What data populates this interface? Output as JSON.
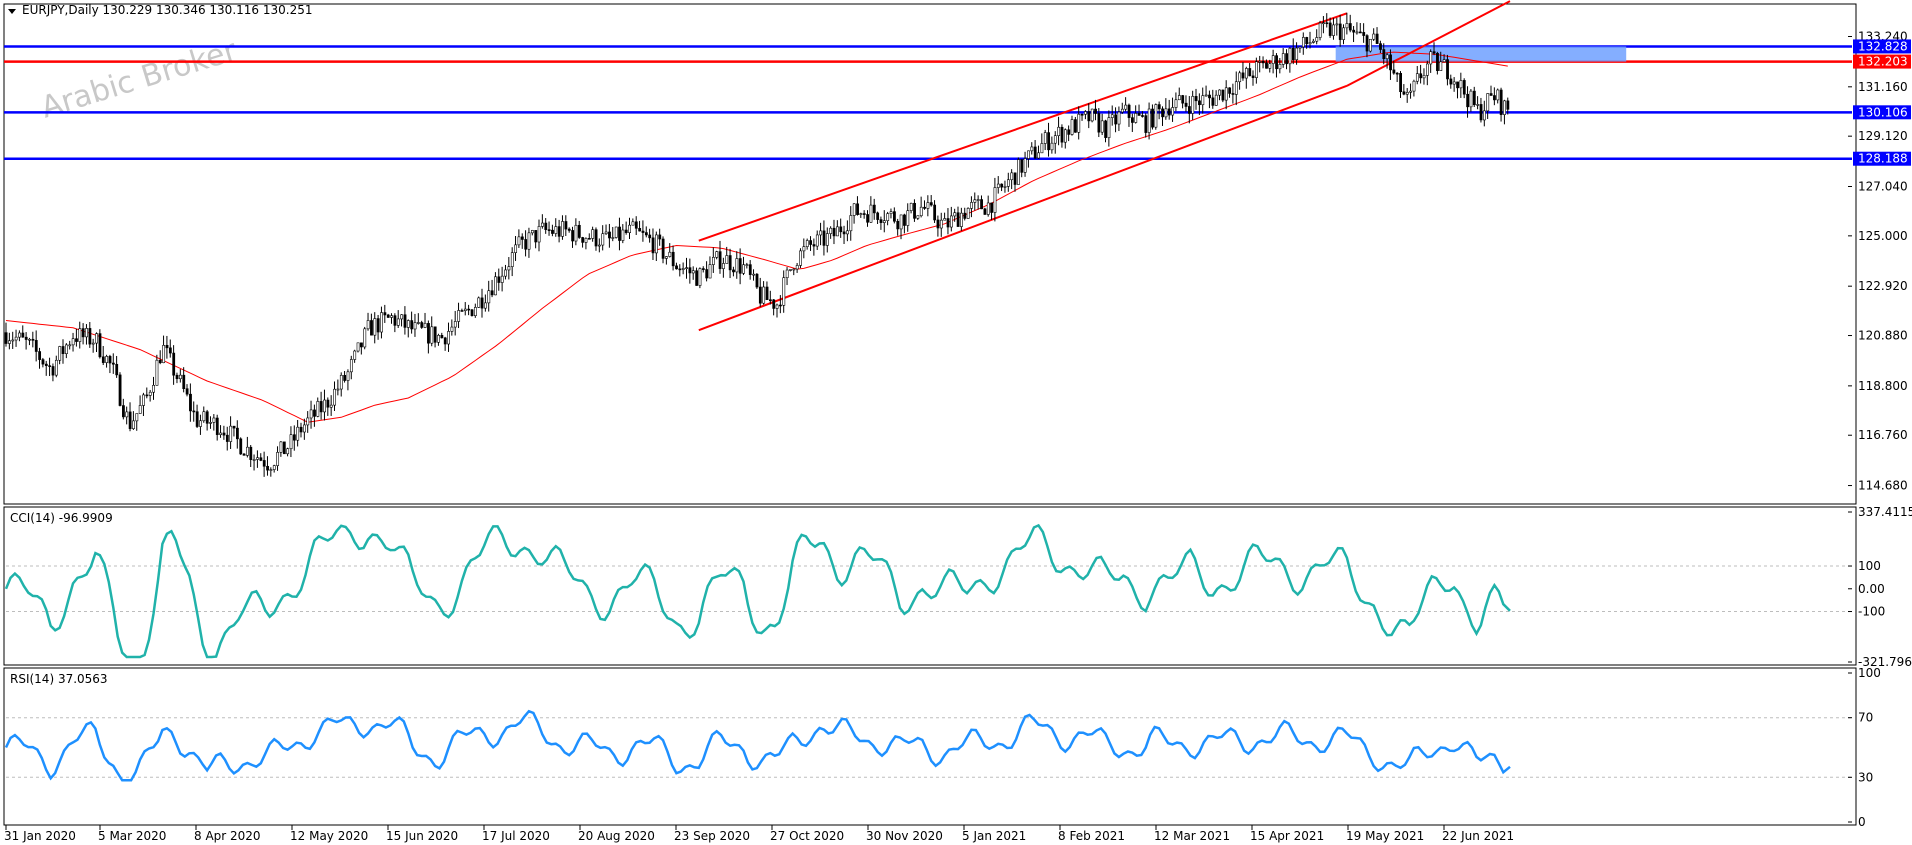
{
  "chart_data": [
    {
      "type": "candlestick",
      "header": "EURJPY,Daily  130.229 130.346 130.116 130.251",
      "symbol": "EURJPY",
      "timeframe": "Daily",
      "ohlc_last": {
        "open": 130.229,
        "high": 130.346,
        "low": 130.116,
        "close": 130.251
      },
      "ylim": [
        114.0,
        134.5
      ],
      "y_ticks": [
        "133.240",
        "131.160",
        "129.120",
        "127.040",
        "125.000",
        "122.920",
        "120.880",
        "118.800",
        "116.760",
        "114.680"
      ],
      "x_ticks": [
        "31 Jan 2020",
        "5 Mar 2020",
        "8 Apr 2020",
        "12 May 2020",
        "15 Jun 2020",
        "17 Jul 2020",
        "20 Aug 2020",
        "23 Sep 2020",
        "27 Oct 2020",
        "30 Nov 2020",
        "5 Jan 2021",
        "8 Feb 2021",
        "12 Mar 2021",
        "15 Apr 2021",
        "19 May 2021",
        "22 Jun 2021"
      ],
      "price_path": [
        [
          0,
          121.0
        ],
        [
          20,
          120.5
        ],
        [
          40,
          119.5
        ],
        [
          60,
          120.9
        ],
        [
          80,
          120.7
        ],
        [
          95,
          119.5
        ],
        [
          110,
          117.2
        ],
        [
          125,
          118.2
        ],
        [
          140,
          120.4
        ],
        [
          155,
          119.0
        ],
        [
          170,
          117.4
        ],
        [
          190,
          117.2
        ],
        [
          215,
          116.2
        ],
        [
          235,
          115.6
        ],
        [
          255,
          116.4
        ],
        [
          265,
          117.1
        ],
        [
          285,
          118.0
        ],
        [
          305,
          119.2
        ],
        [
          325,
          121.2
        ],
        [
          345,
          121.6
        ],
        [
          365,
          121.1
        ],
        [
          390,
          120.8
        ],
        [
          405,
          121.5
        ],
        [
          425,
          122.4
        ],
        [
          440,
          123.3
        ],
        [
          460,
          124.6
        ],
        [
          480,
          125.2
        ],
        [
          500,
          125.2
        ],
        [
          520,
          125.0
        ],
        [
          540,
          124.8
        ],
        [
          560,
          125.2
        ],
        [
          580,
          124.7
        ],
        [
          600,
          123.8
        ],
        [
          620,
          123.3
        ],
        [
          640,
          124.1
        ],
        [
          660,
          123.7
        ],
        [
          675,
          122.5
        ],
        [
          690,
          122.2
        ],
        [
          705,
          124.0
        ],
        [
          720,
          124.6
        ],
        [
          740,
          125.0
        ],
        [
          760,
          126.0
        ],
        [
          780,
          126.0
        ],
        [
          800,
          125.7
        ],
        [
          820,
          126.2
        ],
        [
          840,
          125.4
        ],
        [
          860,
          126.1
        ],
        [
          880,
          126.3
        ],
        [
          900,
          127.4
        ],
        [
          915,
          128.2
        ],
        [
          930,
          128.9
        ],
        [
          950,
          129.4
        ],
        [
          970,
          129.9
        ],
        [
          985,
          129.4
        ],
        [
          1000,
          130.1
        ],
        [
          1020,
          129.7
        ],
        [
          1040,
          130.4
        ],
        [
          1060,
          130.5
        ],
        [
          1080,
          130.7
        ],
        [
          1100,
          131.3
        ],
        [
          1120,
          131.9
        ],
        [
          1140,
          132.3
        ],
        [
          1160,
          132.8
        ],
        [
          1180,
          133.5
        ],
        [
          1200,
          133.5
        ],
        [
          1215,
          133.1
        ],
        [
          1225,
          133.0
        ],
        [
          1235,
          132.3
        ],
        [
          1245,
          131.3
        ],
        [
          1255,
          130.5
        ],
        [
          1265,
          131.6
        ],
        [
          1275,
          132.2
        ],
        [
          1290,
          131.9
        ],
        [
          1300,
          131.3
        ],
        [
          1310,
          130.6
        ],
        [
          1318,
          130.1
        ],
        [
          1325,
          130.5
        ],
        [
          1333,
          130.8
        ],
        [
          1340,
          130.3
        ],
        [
          1346,
          130.25
        ]
      ],
      "ma_path": [
        [
          0,
          121.5
        ],
        [
          60,
          121.2
        ],
        [
          120,
          120.3
        ],
        [
          180,
          119.0
        ],
        [
          230,
          118.2
        ],
        [
          270,
          117.3
        ],
        [
          300,
          117.5
        ],
        [
          330,
          118.0
        ],
        [
          360,
          118.3
        ],
        [
          400,
          119.2
        ],
        [
          440,
          120.5
        ],
        [
          480,
          122.0
        ],
        [
          520,
          123.4
        ],
        [
          560,
          124.2
        ],
        [
          600,
          124.6
        ],
        [
          640,
          124.5
        ],
        [
          680,
          124.0
        ],
        [
          710,
          123.6
        ],
        [
          740,
          124.0
        ],
        [
          770,
          124.6
        ],
        [
          800,
          125.0
        ],
        [
          840,
          125.5
        ],
        [
          880,
          126.3
        ],
        [
          920,
          127.3
        ],
        [
          960,
          128.1
        ],
        [
          1000,
          128.8
        ],
        [
          1040,
          129.4
        ],
        [
          1080,
          130.1
        ],
        [
          1120,
          130.8
        ],
        [
          1160,
          131.6
        ],
        [
          1200,
          132.3
        ],
        [
          1240,
          132.6
        ],
        [
          1280,
          132.5
        ],
        [
          1320,
          132.2
        ],
        [
          1346,
          132.0
        ]
      ],
      "lines": [
        {
          "label": "132.828",
          "price": 132.828,
          "color": "#0000ff"
        },
        {
          "label": "132.203",
          "price": 132.203,
          "color": "#ff0000"
        },
        {
          "label": "130.106",
          "price": 130.106,
          "color": "#0000ff"
        },
        {
          "label": "128.188",
          "price": 128.188,
          "color": "#0000ff"
        }
      ],
      "channel": {
        "upper": [
          [
            620,
            124.8
          ],
          [
            1200,
            134.2
          ]
        ],
        "lower": [
          [
            620,
            121.1
          ],
          [
            1200,
            131.2
          ]
        ],
        "extension": [
          [
            1200,
            131.2
          ],
          [
            1346,
            134.7
          ]
        ],
        "color": "#ff0000"
      },
      "zone": {
        "x_from": 1190,
        "x_to": 1450,
        "price_from": 132.203,
        "price_to": 132.828,
        "color": "#6fa0ff"
      },
      "watermark": "Arabic Broker"
    },
    {
      "type": "line",
      "header": "CCI(14) -96.9909",
      "name": "CCI(14)",
      "value": -96.9909,
      "ylim": [
        -321.7969,
        337.4115
      ],
      "y_ticks": [
        "337.4115",
        "100",
        "0.00",
        "-100",
        "-321.7969"
      ],
      "levels": [
        100,
        -100
      ],
      "color": "#20b2aa"
    },
    {
      "type": "line",
      "header": "RSI(14) 37.0563",
      "name": "RSI(14)",
      "value": 37.0563,
      "ylim": [
        0,
        100
      ],
      "y_ticks": [
        "100",
        "70",
        "30",
        "0"
      ],
      "levels": [
        70,
        30
      ],
      "color": "#1e90ff"
    }
  ]
}
